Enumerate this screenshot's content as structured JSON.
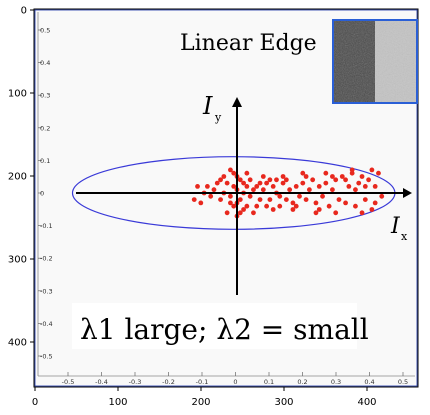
{
  "chart_data": {
    "type": "scatter",
    "title": "Linear Edge",
    "caption": "λ1 large; λ2 = small",
    "axes": {
      "x_name": "I",
      "x_sub": "x",
      "y_name": "I",
      "y_sub": "y"
    },
    "inner_x_ticks": [
      "-0.5",
      "-0.4",
      "-0.3",
      "-0.2",
      "-0.1",
      "0",
      "0.1",
      "0.2",
      "0.3",
      "0.4",
      "0.5"
    ],
    "inner_y_ticks": [
      "0.5",
      "0.4",
      "0.3",
      "0.2",
      "0.1",
      "0",
      "-0.1",
      "-0.2",
      "-0.3",
      "-0.4",
      "-0.5"
    ],
    "outer_x_ticks": [
      "0",
      "100",
      "200",
      "300",
      "400"
    ],
    "outer_y_ticks": [
      "0",
      "100",
      "200",
      "300",
      "400"
    ],
    "xlim": [
      -0.55,
      0.55
    ],
    "ylim": [
      -0.55,
      0.55
    ],
    "ellipse": {
      "cx": -0.01,
      "cy": 0.0,
      "rx": 0.49,
      "ry": 0.11
    },
    "points": [
      [
        0.0,
        0.01
      ],
      [
        0.01,
        -0.02
      ],
      [
        -0.01,
        0.02
      ],
      [
        0.02,
        0.0
      ],
      [
        -0.02,
        -0.01
      ],
      [
        0.0,
        -0.03
      ],
      [
        0.03,
        0.02
      ],
      [
        -0.03,
        0.03
      ],
      [
        0.01,
        0.04
      ],
      [
        -0.01,
        -0.04
      ],
      [
        0.04,
        -0.01
      ],
      [
        -0.04,
        0.0
      ],
      [
        0.02,
        0.03
      ],
      [
        0.0,
        0.05
      ],
      [
        -0.02,
        -0.03
      ],
      [
        0.05,
        0.01
      ],
      [
        -0.05,
        -0.02
      ],
      [
        0.03,
        -0.04
      ],
      [
        0.06,
        0.02
      ],
      [
        -0.06,
        0.03
      ],
      [
        0.01,
        -0.06
      ],
      [
        -0.01,
        0.06
      ],
      [
        0.07,
        -0.02
      ],
      [
        -0.07,
        0.01
      ],
      [
        0.08,
        0.01
      ],
      [
        -0.08,
        -0.01
      ],
      [
        0.09,
        0.03
      ],
      [
        -0.09,
        0.02
      ],
      [
        0.1,
        -0.02
      ],
      [
        -0.1,
        0.0
      ],
      [
        0.11,
        0.02
      ],
      [
        -0.11,
        -0.03
      ],
      [
        0.12,
        0.0
      ],
      [
        -0.12,
        0.02
      ],
      [
        0.13,
        -0.01
      ],
      [
        -0.13,
        -0.02
      ],
      [
        0.14,
        0.03
      ],
      [
        0.15,
        -0.02
      ],
      [
        0.16,
        0.01
      ],
      [
        0.17,
        -0.03
      ],
      [
        0.18,
        0.02
      ],
      [
        0.19,
        -0.01
      ],
      [
        0.2,
        0.03
      ],
      [
        0.21,
        -0.02
      ],
      [
        0.22,
        0.01
      ],
      [
        0.23,
        0.04
      ],
      [
        0.24,
        -0.03
      ],
      [
        0.25,
        0.02
      ],
      [
        0.26,
        -0.01
      ],
      [
        0.27,
        0.03
      ],
      [
        0.28,
        -0.04
      ],
      [
        0.29,
        0.01
      ],
      [
        0.3,
        0.04
      ],
      [
        0.31,
        -0.02
      ],
      [
        0.32,
        0.05
      ],
      [
        0.33,
        -0.03
      ],
      [
        0.34,
        0.02
      ],
      [
        0.35,
        0.06
      ],
      [
        0.36,
        -0.04
      ],
      [
        0.37,
        0.03
      ],
      [
        0.38,
        0.05
      ],
      [
        0.39,
        -0.02
      ],
      [
        0.4,
        0.04
      ],
      [
        0.41,
        -0.05
      ],
      [
        0.42,
        0.02
      ],
      [
        0.43,
        0.06
      ],
      [
        0.44,
        -0.01
      ],
      [
        0.41,
        0.07
      ],
      [
        0.38,
        -0.06
      ],
      [
        0.35,
        0.07
      ],
      [
        0.3,
        -0.06
      ],
      [
        0.27,
        0.06
      ],
      [
        0.24,
        -0.06
      ],
      [
        0.2,
        0.06
      ],
      [
        0.17,
        -0.05
      ],
      [
        0.14,
        0.05
      ],
      [
        0.11,
        -0.05
      ],
      [
        0.08,
        0.05
      ],
      [
        0.05,
        -0.06
      ],
      [
        0.03,
        0.06
      ],
      [
        -0.03,
        -0.06
      ],
      [
        -0.04,
        0.05
      ],
      [
        0.06,
        -0.04
      ],
      [
        0.09,
        -0.04
      ],
      [
        0.12,
        0.04
      ],
      [
        0.15,
        0.04
      ],
      [
        0.18,
        -0.04
      ],
      [
        0.21,
        0.05
      ],
      [
        0.25,
        -0.05
      ],
      [
        0.29,
        0.05
      ],
      [
        0.33,
        0.04
      ],
      [
        0.36,
        0.01
      ],
      [
        0.39,
        0.02
      ],
      [
        0.42,
        -0.03
      ],
      [
        -0.02,
        0.07
      ],
      [
        0.0,
        -0.07
      ],
      [
        0.02,
        -0.05
      ],
      [
        -0.05,
        0.04
      ],
      [
        0.04,
        0.04
      ],
      [
        0.07,
        0.03
      ],
      [
        0.1,
        0.04
      ],
      [
        0.13,
        -0.04
      ]
    ],
    "colors": {
      "points": "#e8281e",
      "ellipse": "#3a3ad8",
      "inset_border": "#2a5fd6",
      "frame": "#1a33a8"
    }
  }
}
